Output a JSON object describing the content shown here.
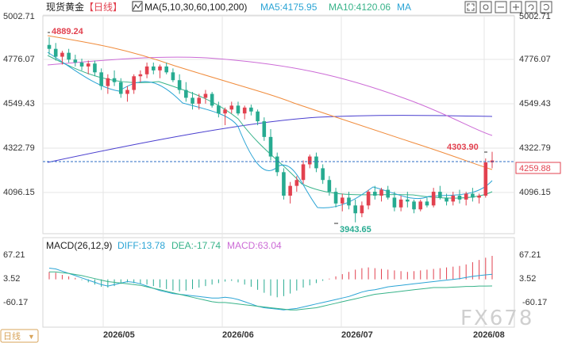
{
  "header": {
    "symbol": "现货黄金",
    "period": "【日线】",
    "ma_label": "MA(5,10,30,60,100,200)",
    "ma5": "MA5:4175.95",
    "ma10": "MA10:4120.06",
    "ma_more": "MA",
    "macd_label": "MACD(26,12,9)",
    "diff": "DIFF:13.78",
    "dea": "DEA:-17.74",
    "macd": "MACD:63.04"
  },
  "price_axis": {
    "left_ticks": [
      "5002.71",
      "4776.07",
      "4549.43",
      "4322.79",
      "4096.15"
    ],
    "right_ticks": [
      "5002.71",
      "4776.07",
      "4549.43",
      "4322.79",
      "4096.15"
    ],
    "current_price": "4259.88",
    "max_label": "4889.24",
    "min_label": "3943.65",
    "recent_high_label": "4303.90"
  },
  "macd_axis": {
    "left_ticks": [
      "67.21",
      "3.52",
      "-60.17"
    ],
    "right_ticks": [
      "67.21",
      "3.52",
      "-60.17"
    ]
  },
  "time_axis": {
    "labels": [
      "2026/05",
      "2026/06",
      "2026/07",
      "2026/08"
    ],
    "period_tag": "日线"
  },
  "watermark": "FX678",
  "colors": {
    "up": "#e2414f",
    "down": "#27ab91",
    "ma5": "#2aa4d5",
    "ma10": "#37b389",
    "ma30": "#f08b3b",
    "ma60": "#cc6bd6",
    "ma100": "#4a3fcf",
    "grid": "#e4e4e4",
    "price_line": "#2b6cc4"
  },
  "chart_data": {
    "type": "candlestick",
    "candles_ohlc": [
      [
        4850,
        4889.24,
        4800,
        4830
      ],
      [
        4830,
        4860,
        4770,
        4790
      ],
      [
        4790,
        4820,
        4750,
        4810
      ],
      [
        4810,
        4830,
        4760,
        4775
      ],
      [
        4775,
        4800,
        4740,
        4760
      ],
      [
        4760,
        4780,
        4720,
        4740
      ],
      [
        4740,
        4770,
        4700,
        4755
      ],
      [
        4755,
        4770,
        4690,
        4710
      ],
      [
        4710,
        4730,
        4620,
        4640
      ],
      [
        4640,
        4700,
        4600,
        4680
      ],
      [
        4680,
        4720,
        4640,
        4660
      ],
      [
        4660,
        4680,
        4580,
        4600
      ],
      [
        4600,
        4640,
        4560,
        4620
      ],
      [
        4620,
        4700,
        4600,
        4690
      ],
      [
        4690,
        4720,
        4660,
        4700
      ],
      [
        4700,
        4760,
        4680,
        4740
      ],
      [
        4740,
        4760,
        4700,
        4720
      ],
      [
        4720,
        4750,
        4680,
        4740
      ],
      [
        4740,
        4760,
        4700,
        4710
      ],
      [
        4710,
        4730,
        4660,
        4670
      ],
      [
        4670,
        4700,
        4600,
        4620
      ],
      [
        4620,
        4660,
        4560,
        4580
      ],
      [
        4580,
        4610,
        4520,
        4550
      ],
      [
        4550,
        4600,
        4520,
        4580
      ],
      [
        4580,
        4620,
        4550,
        4600
      ],
      [
        4600,
        4610,
        4530,
        4540
      ],
      [
        4540,
        4560,
        4480,
        4500
      ],
      [
        4500,
        4530,
        4440,
        4520
      ],
      [
        4520,
        4560,
        4500,
        4540
      ],
      [
        4540,
        4560,
        4490,
        4500
      ],
      [
        4500,
        4540,
        4470,
        4530
      ],
      [
        4530,
        4545,
        4490,
        4510
      ],
      [
        4510,
        4520,
        4440,
        4460
      ],
      [
        4460,
        4480,
        4360,
        4380
      ],
      [
        4380,
        4420,
        4260,
        4280
      ],
      [
        4280,
        4300,
        4180,
        4200
      ],
      [
        4200,
        4220,
        4060,
        4080
      ],
      [
        4080,
        4150,
        4040,
        4130
      ],
      [
        4130,
        4180,
        4100,
        4160
      ],
      [
        4160,
        4260,
        4140,
        4240
      ],
      [
        4240,
        4290,
        4220,
        4280
      ],
      [
        4280,
        4300,
        4200,
        4220
      ],
      [
        4220,
        4240,
        4140,
        4160
      ],
      [
        4160,
        4180,
        4080,
        4100
      ],
      [
        4100,
        4120,
        4020,
        4040
      ],
      [
        4040,
        4090,
        4000,
        4070
      ],
      [
        4070,
        4100,
        4010,
        4030
      ],
      [
        4030,
        4060,
        3943.65,
        3990
      ],
      [
        3990,
        4050,
        3970,
        4030
      ],
      [
        4030,
        4110,
        4010,
        4100
      ],
      [
        4100,
        4130,
        4060,
        4080
      ],
      [
        4080,
        4120,
        4050,
        4110
      ],
      [
        4110,
        4130,
        4060,
        4070
      ],
      [
        4070,
        4100,
        4000,
        4020
      ],
      [
        4020,
        4080,
        4000,
        4060
      ],
      [
        4060,
        4100,
        4020,
        4050
      ],
      [
        4050,
        4060,
        3990,
        4010
      ],
      [
        4010,
        4060,
        4000,
        4050
      ],
      [
        4050,
        4070,
        4020,
        4030
      ],
      [
        4030,
        4120,
        4020,
        4100
      ],
      [
        4100,
        4130,
        4060,
        4070
      ],
      [
        4070,
        4090,
        4030,
        4050
      ],
      [
        4050,
        4100,
        4030,
        4080
      ],
      [
        4080,
        4110,
        4040,
        4060
      ],
      [
        4060,
        4100,
        4030,
        4090
      ],
      [
        4090,
        4120,
        4050,
        4070
      ],
      [
        4070,
        4090,
        4040,
        4080
      ],
      [
        4080,
        4270,
        4070,
        4250
      ],
      [
        4250,
        4303.9,
        4220,
        4259.88
      ]
    ],
    "macd_hist": [
      20,
      18,
      12,
      8,
      4,
      -2,
      -8,
      -14,
      -20,
      -22,
      -18,
      -12,
      -8,
      -10,
      -12,
      -14,
      -18,
      -22,
      -26,
      -30,
      -32,
      -30,
      -26,
      -22,
      -18,
      -14,
      -10,
      -6,
      -4,
      -8,
      -14,
      -20,
      -28,
      -36,
      -44,
      -48,
      -45,
      -38,
      -30,
      -22,
      -16,
      -10,
      -4,
      2,
      8,
      14,
      20,
      26,
      30,
      32,
      30,
      28,
      26,
      24,
      22,
      20,
      22,
      24,
      26,
      28,
      30,
      32,
      34,
      36,
      40,
      46,
      52,
      58,
      63.04
    ],
    "diff_line": [
      30,
      28,
      22,
      16,
      10,
      4,
      -2,
      -8,
      -14,
      -18,
      -14,
      -10,
      -6,
      -8,
      -12,
      -18,
      -24,
      -30,
      -34,
      -38,
      -40,
      -42,
      -44,
      -46,
      -48,
      -50,
      -50,
      -48,
      -50,
      -54,
      -60,
      -66,
      -72,
      -76,
      -78,
      -80,
      -82,
      -80,
      -78,
      -74,
      -70,
      -66,
      -62,
      -58,
      -54,
      -50,
      -46,
      -40,
      -34,
      -30,
      -28,
      -24,
      -20,
      -18,
      -16,
      -14,
      -12,
      -10,
      -8,
      -6,
      -4,
      -2,
      0,
      2,
      5,
      8,
      10,
      12,
      13.78
    ],
    "dea_line": [
      20,
      20,
      18,
      16,
      13,
      10,
      6,
      2,
      -2,
      -6,
      -8,
      -10,
      -12,
      -14,
      -16,
      -20,
      -24,
      -28,
      -32,
      -36,
      -40,
      -44,
      -48,
      -52,
      -56,
      -60,
      -62,
      -62,
      -64,
      -66,
      -68,
      -70,
      -72,
      -74,
      -76,
      -78,
      -80,
      -82,
      -82,
      -80,
      -78,
      -76,
      -72,
      -68,
      -64,
      -60,
      -56,
      -52,
      -48,
      -44,
      -40,
      -38,
      -36,
      -34,
      -32,
      -30,
      -28,
      -26,
      -24,
      -22,
      -22,
      -22,
      -21,
      -20,
      -19,
      -19,
      -18,
      -18,
      -17.74
    ],
    "y_range": [
      3943.65,
      5002.71
    ],
    "macd_range": [
      -60.17,
      67.21
    ]
  }
}
